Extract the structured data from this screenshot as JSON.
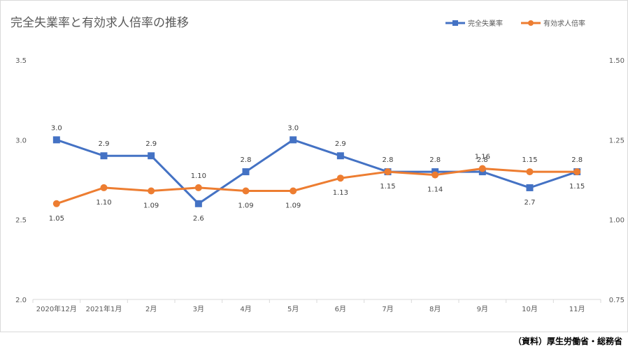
{
  "chart_data": {
    "type": "line",
    "title": "完全失業率と有効求人倍率の推移",
    "categories": [
      "2020年12月",
      "2021年1月",
      "2月",
      "3月",
      "4月",
      "5月",
      "6月",
      "7月",
      "8月",
      "9月",
      "10月",
      "11月"
    ],
    "series": [
      {
        "name": "完全失業率",
        "axis": "left",
        "color": "#4472c4",
        "marker": "square",
        "values": [
          3.0,
          2.9,
          2.9,
          2.6,
          2.8,
          3.0,
          2.9,
          2.8,
          2.8,
          2.8,
          2.7,
          2.8
        ],
        "labels": [
          "3.0",
          "2.9",
          "2.9",
          "2.6",
          "2.8",
          "3.0",
          "2.9",
          "2.8",
          "2.8",
          "2.8",
          "2.7",
          "2.8"
        ]
      },
      {
        "name": "有効求人倍率",
        "axis": "right",
        "color": "#ed7d31",
        "marker": "circle",
        "values": [
          1.05,
          1.1,
          1.09,
          1.1,
          1.09,
          1.09,
          1.13,
          1.15,
          1.14,
          1.16,
          1.15,
          1.15
        ],
        "labels": [
          "1.05",
          "1.10",
          "1.09",
          "1.10",
          "1.09",
          "1.09",
          "1.13",
          "1.15",
          "1.14",
          "1.16",
          "1.15",
          "1.15"
        ]
      }
    ],
    "y_left": {
      "range": [
        2.0,
        3.5
      ],
      "ticks": [
        "2.0",
        "2.5",
        "3.0",
        "3.5"
      ],
      "tick_values": [
        2.0,
        2.5,
        3.0,
        3.5
      ]
    },
    "y_right": {
      "range": [
        0.75,
        1.5
      ],
      "ticks": [
        "0.75",
        "1.00",
        "1.25",
        "1.50"
      ],
      "tick_values": [
        0.75,
        1.0,
        1.25,
        1.5
      ]
    },
    "grid": false,
    "legend_position": "top-right"
  },
  "source_note": "（資料）厚生労働省・総務省"
}
